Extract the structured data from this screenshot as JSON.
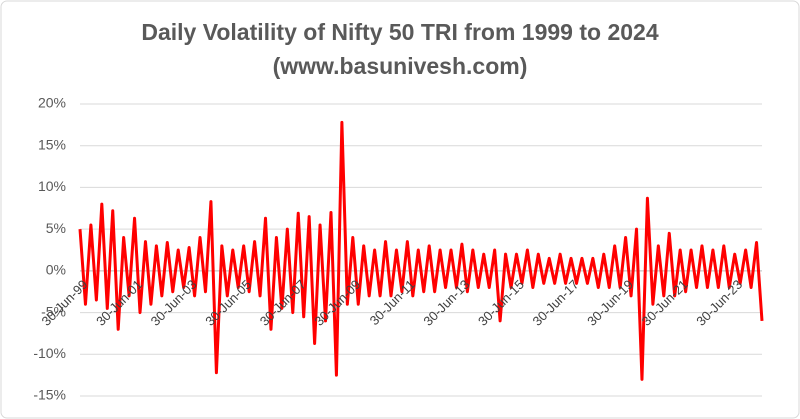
{
  "chart_data": {
    "type": "line",
    "title": "Daily Volatility of Nifty 50 TRI from 1999 to 2024",
    "subtitle": "(www.basunivesh.com)",
    "color": "#ff0000",
    "grid": true,
    "ylim": [
      -15,
      20
    ],
    "yticks": [
      {
        "value": -15,
        "label": "-15%"
      },
      {
        "value": -10,
        "label": "-10%"
      },
      {
        "value": -5,
        "label": "-5%"
      },
      {
        "value": 0,
        "label": "0%"
      },
      {
        "value": 5,
        "label": "5%"
      },
      {
        "value": 10,
        "label": "10%"
      },
      {
        "value": 15,
        "label": "15%"
      },
      {
        "value": 20,
        "label": "20%"
      }
    ],
    "categories": [
      "30-Jun-99",
      null,
      null,
      null,
      null,
      null,
      null,
      null,
      null,
      null,
      "30-Jun-01",
      null,
      null,
      null,
      null,
      null,
      null,
      null,
      null,
      null,
      "30-Jun-03",
      null,
      null,
      null,
      null,
      null,
      null,
      null,
      null,
      null,
      "30-Jun-05",
      null,
      null,
      null,
      null,
      null,
      null,
      null,
      null,
      null,
      "30-Jun-07",
      null,
      null,
      null,
      null,
      null,
      null,
      null,
      null,
      null,
      "30-Jun-09",
      null,
      null,
      null,
      null,
      null,
      null,
      null,
      null,
      null,
      "30-Jun-11",
      null,
      null,
      null,
      null,
      null,
      null,
      null,
      null,
      null,
      "30-Jun-13",
      null,
      null,
      null,
      null,
      null,
      null,
      null,
      null,
      null,
      "30-Jun-15",
      null,
      null,
      null,
      null,
      null,
      null,
      null,
      null,
      null,
      "30-Jun-17",
      null,
      null,
      null,
      null,
      null,
      null,
      null,
      null,
      null,
      "30-Jun-19",
      null,
      null,
      null,
      null,
      null,
      null,
      null,
      null,
      null,
      "30-Jun-21",
      null,
      null,
      null,
      null,
      null,
      null,
      null,
      null,
      null,
      "30-Jun-23",
      null,
      null,
      null,
      null,
      null
    ],
    "values": [
      5,
      -4,
      5.5,
      -3.5,
      8,
      -4.5,
      7.2,
      -7,
      4,
      -3,
      6.3,
      -5,
      3.5,
      -4,
      3,
      -3,
      3.4,
      -2.5,
      2.5,
      -2,
      2.8,
      -3,
      4,
      -2.5,
      8.3,
      -12.2,
      3,
      -3,
      2.5,
      -2,
      3,
      -2.5,
      3.5,
      -3,
      6.3,
      -7,
      4,
      -4.5,
      5,
      -5,
      6.9,
      -5.5,
      6.5,
      -8.7,
      5.5,
      -6,
      7,
      -12.5,
      17.8,
      -4,
      4,
      -4,
      3,
      -3,
      2.5,
      -3,
      3.5,
      -3,
      2.5,
      -2.5,
      3.5,
      -3,
      2.5,
      -2.5,
      3,
      -2.5,
      2.5,
      -2,
      2.5,
      -2,
      3.2,
      -2.5,
      2.5,
      -2,
      2,
      -2,
      2.5,
      -6,
      2,
      -2,
      2,
      -1.5,
      2.5,
      -2,
      2,
      -1.5,
      1.5,
      -1.5,
      2,
      -1.5,
      1.5,
      -1.5,
      1.5,
      -1.5,
      1.5,
      -2,
      2,
      -2,
      3,
      -2,
      4,
      -3,
      5,
      -13,
      8.7,
      -4,
      3,
      -3,
      4.5,
      -3,
      2.5,
      -2.5,
      2.5,
      -2,
      3,
      -2,
      2.5,
      -2,
      3,
      -2,
      2,
      -1.5,
      2.5,
      -2,
      3.4,
      -6
    ]
  }
}
